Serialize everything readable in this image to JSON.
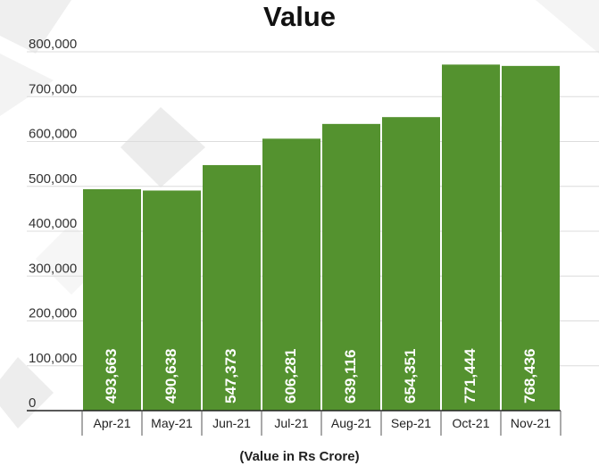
{
  "chart_data": {
    "type": "bar",
    "title": "Value",
    "xlabel": "(Value in Rs Crore)",
    "ylabel": "",
    "categories": [
      "Apr-21",
      "May-21",
      "Jun-21",
      "Jul-21",
      "Aug-21",
      "Sep-21",
      "Oct-21",
      "Nov-21"
    ],
    "values": [
      493663,
      490638,
      547373,
      606281,
      639116,
      654351,
      771444,
      768436
    ],
    "data_labels": [
      "493,663",
      "490,638",
      "547,373",
      "606,281",
      "639,116",
      "654,351",
      "771,444",
      "768,436"
    ],
    "ylim": [
      0,
      800000
    ],
    "yticks": [
      0,
      100000,
      200000,
      300000,
      400000,
      500000,
      600000,
      700000,
      800000
    ],
    "ytick_labels": [
      "0",
      "100,000",
      "200,000",
      "300,000",
      "400,000",
      "500,000",
      "600,000",
      "700,000",
      "800,000"
    ],
    "grid": true,
    "legend": "none",
    "bar_color": "#54922f",
    "label_color": "#ffffff"
  }
}
